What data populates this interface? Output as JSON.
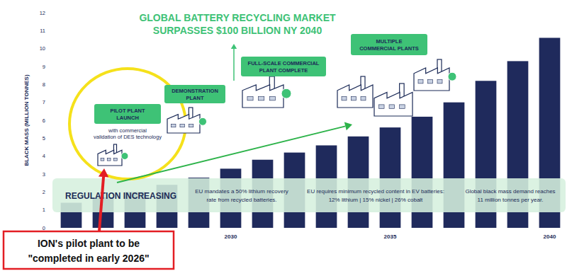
{
  "chart_data": {
    "type": "bar",
    "title": [
      "GLOBAL BATTERY RECYCLING MARKET",
      "SURPASSES $100 BILLION NY 2040"
    ],
    "y_label": "BLACK MASS (MILLION TONNES)",
    "categories": [
      null,
      null,
      null,
      null,
      null,
      "2030",
      null,
      null,
      null,
      null,
      "2035",
      null,
      null,
      null,
      null,
      "2040"
    ],
    "values": [
      1.4,
      1.7,
      2.0,
      2.4,
      2.8,
      3.3,
      3.8,
      4.2,
      4.6,
      5.1,
      5.6,
      6.2,
      7.0,
      8.2,
      9.3,
      10.6
    ],
    "color": "#1f2a5c",
    "ylim": [
      0,
      12
    ],
    "yticks": [
      0,
      1,
      2,
      3,
      4,
      5,
      6,
      7,
      8,
      9,
      10,
      11,
      12
    ],
    "grid": false,
    "milestones": [
      {
        "label": [
          "PILOT PLANT",
          "LAUNCH"
        ],
        "note": [
          "with commercial",
          "validation of DES technology"
        ]
      },
      {
        "label": [
          "DEMONSTRATION",
          "PLANT"
        ]
      },
      {
        "label": [
          "FULL-SCALE COMMERCIAL",
          "PLANT COMPLETE"
        ]
      },
      {
        "label": [
          "MULTIPLE",
          "COMMERCIAL PLANTS"
        ]
      }
    ],
    "regulation": {
      "label": "REGULATION INCREASING",
      "items": [
        [
          "EU mandates a 50% lithium recovery",
          "rate from recycled batteries."
        ],
        [
          "EU requires minimum recycled content in EV batteries:",
          "12% lithium | 15% nickel | 26% cobalt"
        ],
        [
          "Global black mass demand reaches",
          "11 million tonnes per year."
        ]
      ]
    },
    "callout": [
      "ION's pilot plant to be",
      "\"completed in early 2026\""
    ]
  }
}
